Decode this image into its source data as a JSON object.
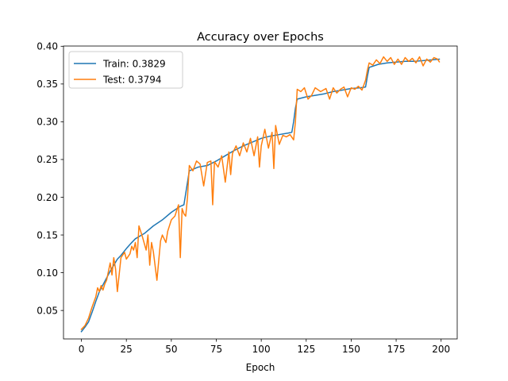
{
  "chart_data": {
    "type": "line",
    "title": "Accuracy over Epochs",
    "xlabel": "Epoch",
    "ylabel": "",
    "xlim": [
      -9.95,
      208.95
    ],
    "ylim": [
      0.0123,
      0.4003
    ],
    "xticks": [
      0,
      25,
      50,
      75,
      100,
      125,
      150,
      175,
      200
    ],
    "yticks": [
      0.05,
      0.1,
      0.15,
      0.2,
      0.25,
      0.3,
      0.35,
      0.4
    ],
    "ytick_labels": [
      "0.05",
      "0.10",
      "0.15",
      "0.20",
      "0.25",
      "0.30",
      "0.35",
      "0.40"
    ],
    "grid": false,
    "legend_position": "upper-left",
    "series": [
      {
        "name": "Train: 0.3829",
        "color": "#1f77b4",
        "x": [
          0,
          2,
          4,
          6,
          8,
          10,
          12,
          14,
          16,
          18,
          20,
          22,
          25,
          28,
          30,
          35,
          40,
          45,
          50,
          55,
          57,
          58,
          59,
          60,
          65,
          70,
          75,
          80,
          85,
          90,
          95,
          100,
          105,
          110,
          115,
          117,
          118,
          119,
          120,
          125,
          130,
          135,
          140,
          145,
          150,
          155,
          158,
          159,
          160,
          165,
          170,
          175,
          180,
          185,
          190,
          195,
          199
        ],
        "y": [
          0.022,
          0.028,
          0.035,
          0.048,
          0.062,
          0.075,
          0.084,
          0.093,
          0.102,
          0.11,
          0.118,
          0.123,
          0.132,
          0.14,
          0.145,
          0.152,
          0.162,
          0.17,
          0.18,
          0.188,
          0.19,
          0.205,
          0.22,
          0.235,
          0.24,
          0.242,
          0.248,
          0.255,
          0.262,
          0.268,
          0.273,
          0.278,
          0.281,
          0.283,
          0.285,
          0.286,
          0.3,
          0.318,
          0.33,
          0.333,
          0.335,
          0.337,
          0.34,
          0.342,
          0.344,
          0.345,
          0.346,
          0.36,
          0.372,
          0.376,
          0.378,
          0.379,
          0.38,
          0.38,
          0.381,
          0.382,
          0.3829
        ]
      },
      {
        "name": "Test: 0.3794",
        "color": "#ff7f0e",
        "x": [
          0,
          2,
          4,
          6,
          8,
          9,
          10,
          11,
          12,
          13,
          14,
          16,
          17,
          18,
          19,
          20,
          22,
          24,
          25,
          27,
          28,
          29,
          30,
          31,
          32,
          34,
          36,
          37,
          38,
          39,
          40,
          42,
          44,
          45,
          47,
          48,
          50,
          52,
          54,
          55,
          56,
          57,
          58,
          59,
          60,
          62,
          64,
          66,
          68,
          70,
          72,
          73,
          74,
          76,
          78,
          80,
          82,
          83,
          84,
          86,
          88,
          90,
          92,
          94,
          96,
          98,
          99,
          100,
          102,
          104,
          106,
          107,
          108,
          110,
          112,
          114,
          116,
          118,
          119,
          120,
          122,
          124,
          126,
          128,
          130,
          133,
          136,
          138,
          140,
          142,
          144,
          146,
          148,
          150,
          152,
          154,
          156,
          158,
          159,
          160,
          162,
          164,
          166,
          168,
          170,
          172,
          174,
          176,
          178,
          180,
          182,
          184,
          186,
          188,
          190,
          192,
          194,
          196,
          198,
          199
        ],
        "y": [
          0.025,
          0.03,
          0.04,
          0.055,
          0.068,
          0.08,
          0.075,
          0.083,
          0.077,
          0.085,
          0.09,
          0.113,
          0.097,
          0.12,
          0.105,
          0.075,
          0.12,
          0.127,
          0.118,
          0.125,
          0.135,
          0.13,
          0.14,
          0.12,
          0.162,
          0.147,
          0.13,
          0.15,
          0.11,
          0.14,
          0.128,
          0.09,
          0.142,
          0.15,
          0.14,
          0.155,
          0.17,
          0.175,
          0.19,
          0.12,
          0.185,
          0.178,
          0.175,
          0.2,
          0.242,
          0.235,
          0.248,
          0.244,
          0.215,
          0.246,
          0.248,
          0.19,
          0.247,
          0.24,
          0.255,
          0.22,
          0.26,
          0.23,
          0.258,
          0.268,
          0.255,
          0.272,
          0.26,
          0.278,
          0.255,
          0.28,
          0.24,
          0.268,
          0.29,
          0.265,
          0.286,
          0.238,
          0.295,
          0.27,
          0.282,
          0.28,
          0.283,
          0.276,
          0.3,
          0.343,
          0.34,
          0.345,
          0.33,
          0.335,
          0.345,
          0.34,
          0.344,
          0.33,
          0.345,
          0.338,
          0.343,
          0.346,
          0.333,
          0.345,
          0.343,
          0.347,
          0.342,
          0.355,
          0.368,
          0.378,
          0.375,
          0.382,
          0.377,
          0.386,
          0.38,
          0.385,
          0.376,
          0.383,
          0.376,
          0.385,
          0.38,
          0.384,
          0.378,
          0.386,
          0.374,
          0.383,
          0.379,
          0.385,
          0.383,
          0.3794
        ]
      }
    ]
  }
}
